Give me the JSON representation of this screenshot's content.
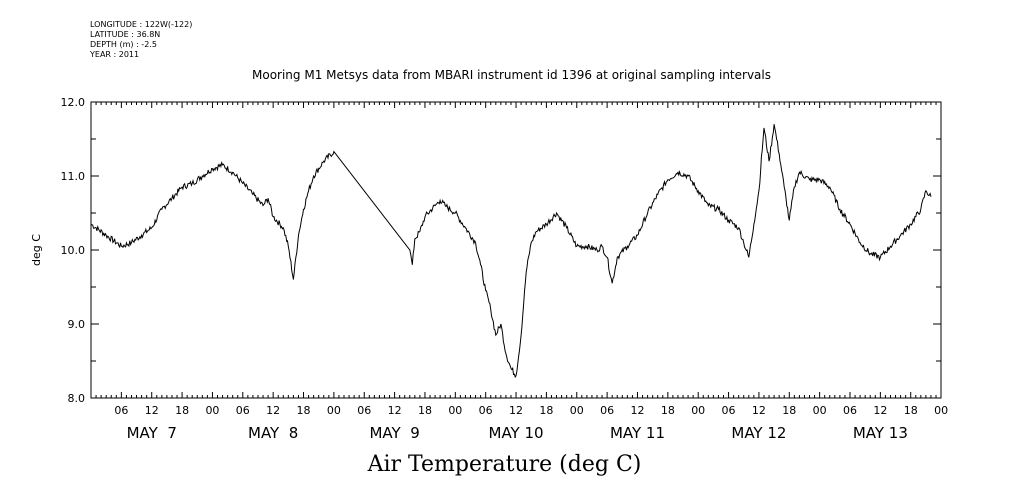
{
  "meta": {
    "longitude": "LONGITUDE : 122W(-122)",
    "latitude": "LATITUDE : 36.8N",
    "depth": "DEPTH (m) : -2.5",
    "year": "YEAR : 2011"
  },
  "chart_data": {
    "type": "line",
    "title": "Mooring M1 Metsys data from MBARI instrument id 1396 at original sampling intervals",
    "xlabel": "Air Temperature (deg C)",
    "ylabel": "deg C",
    "ylim": [
      8.0,
      12.0
    ],
    "y_ticks": [
      "8.0",
      "9.0",
      "10.0",
      "11.0",
      "12.0"
    ],
    "x_hour_ticks": [
      "06",
      "12",
      "18",
      "00",
      "06",
      "12",
      "18",
      "00",
      "06",
      "12",
      "18",
      "00",
      "06",
      "12",
      "18",
      "00",
      "06",
      "12",
      "18",
      "00",
      "06",
      "12",
      "18",
      "00",
      "06",
      "12",
      "18",
      "00"
    ],
    "x_day_labels": [
      "MAY  7",
      "MAY  8",
      "MAY  9",
      "MAY 10",
      "MAY 11",
      "MAY 12",
      "MAY 13"
    ],
    "x_unit": "hours since MAY 7 00:00",
    "grid": false,
    "series": [
      {
        "values": [
          [
            0,
            10.35
          ],
          [
            3,
            10.2
          ],
          [
            6,
            10.05
          ],
          [
            8,
            10.1
          ],
          [
            10,
            10.2
          ],
          [
            12,
            10.3
          ],
          [
            14,
            10.55
          ],
          [
            16,
            10.7
          ],
          [
            18,
            10.85
          ],
          [
            20,
            10.9
          ],
          [
            22,
            11.0
          ],
          [
            24,
            11.1
          ],
          [
            26,
            11.15
          ],
          [
            28,
            11.05
          ],
          [
            30,
            10.9
          ],
          [
            32,
            10.75
          ],
          [
            34,
            10.6
          ],
          [
            35,
            10.7
          ],
          [
            36,
            10.45
          ],
          [
            38,
            10.3
          ],
          [
            39,
            10.05
          ],
          [
            40,
            9.6
          ],
          [
            41,
            10.2
          ],
          [
            42,
            10.55
          ],
          [
            43,
            10.8
          ],
          [
            44,
            11.0
          ],
          [
            46,
            11.2
          ],
          [
            48,
            11.33
          ],
          [
            63,
            10.0
          ],
          [
            63.5,
            9.8
          ],
          [
            64,
            10.15
          ],
          [
            65,
            10.25
          ],
          [
            66,
            10.45
          ],
          [
            68,
            10.6
          ],
          [
            69,
            10.67
          ],
          [
            70,
            10.6
          ],
          [
            72,
            10.5
          ],
          [
            74,
            10.3
          ],
          [
            76,
            10.1
          ],
          [
            77,
            9.8
          ],
          [
            78,
            9.45
          ],
          [
            79,
            9.2
          ],
          [
            80,
            8.85
          ],
          [
            81,
            9.0
          ],
          [
            82,
            8.6
          ],
          [
            83,
            8.4
          ],
          [
            84,
            8.3
          ],
          [
            85,
            8.85
          ],
          [
            86,
            9.7
          ],
          [
            87,
            10.1
          ],
          [
            88,
            10.25
          ],
          [
            90,
            10.35
          ],
          [
            92,
            10.5
          ],
          [
            94,
            10.3
          ],
          [
            96,
            10.05
          ],
          [
            98,
            10.05
          ],
          [
            100,
            10.0
          ],
          [
            101,
            10.05
          ],
          [
            102,
            9.9
          ],
          [
            103,
            9.55
          ],
          [
            104,
            9.9
          ],
          [
            106,
            10.05
          ],
          [
            108,
            10.2
          ],
          [
            110,
            10.5
          ],
          [
            112,
            10.75
          ],
          [
            114,
            10.95
          ],
          [
            116,
            11.05
          ],
          [
            118,
            11.0
          ],
          [
            120,
            10.8
          ],
          [
            122,
            10.6
          ],
          [
            124,
            10.55
          ],
          [
            126,
            10.4
          ],
          [
            128,
            10.3
          ],
          [
            129,
            10.1
          ],
          [
            130,
            9.9
          ],
          [
            131,
            10.35
          ],
          [
            132,
            10.8
          ],
          [
            133,
            11.65
          ],
          [
            134,
            11.2
          ],
          [
            135,
            11.7
          ],
          [
            136,
            11.3
          ],
          [
            137,
            10.85
          ],
          [
            138,
            10.4
          ],
          [
            139,
            10.85
          ],
          [
            140,
            11.05
          ],
          [
            142,
            10.95
          ],
          [
            144,
            10.95
          ],
          [
            146,
            10.85
          ],
          [
            148,
            10.55
          ],
          [
            150,
            10.35
          ],
          [
            152,
            10.1
          ],
          [
            154,
            9.95
          ],
          [
            156,
            9.9
          ],
          [
            158,
            10.05
          ],
          [
            160,
            10.2
          ],
          [
            162,
            10.35
          ],
          [
            164,
            10.55
          ],
          [
            165,
            10.8
          ],
          [
            166,
            10.72
          ]
        ]
      }
    ]
  }
}
